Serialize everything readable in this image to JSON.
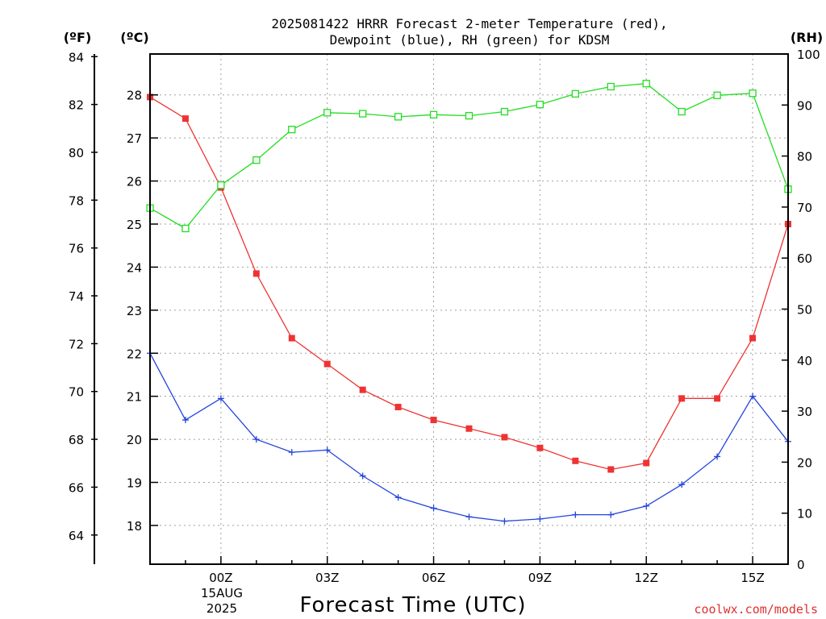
{
  "chart_data": {
    "type": "line",
    "title_lines": [
      "2025081422 HRRR Forecast 2-meter Temperature (red),",
      "Dewpoint (blue), RH (green) for KDSM"
    ],
    "xlabel": "Forecast Time (UTC)",
    "date_label": [
      "15AUG",
      "2025"
    ],
    "credit": "coolwx.com/models",
    "credit_color": "#e03030",
    "x_tick_labels": [
      "00Z",
      "03Z",
      "06Z",
      "09Z",
      "12Z",
      "15Z"
    ],
    "x_tick_hours": [
      0,
      3,
      6,
      9,
      12,
      15
    ],
    "x_hours": [
      -2,
      -1,
      0,
      1,
      2,
      3,
      4,
      5,
      6,
      7,
      8,
      9,
      10,
      11,
      12,
      13,
      14,
      15,
      16
    ],
    "xlim": [
      -2,
      16
    ],
    "axes": {
      "fahrenheit": {
        "label": "(ºF)",
        "ticks": [
          64,
          66,
          68,
          70,
          72,
          74,
          76,
          78,
          80,
          82,
          84
        ]
      },
      "celsius": {
        "label": "(ºC)",
        "ticks": [
          18,
          19,
          20,
          21,
          22,
          23,
          24,
          25,
          26,
          27,
          28
        ],
        "ylim": [
          17.1,
          28.95
        ]
      },
      "rh": {
        "label": "(RH)",
        "ticks": [
          0,
          10,
          20,
          30,
          40,
          50,
          60,
          70,
          80,
          90,
          100
        ],
        "ylim": [
          0,
          100
        ]
      }
    },
    "grid": true,
    "series": [
      {
        "axis": "celsius",
        "color": "#ee3333",
        "marker": "filled-square",
        "values": [
          27.95,
          27.45,
          25.85,
          23.85,
          22.35,
          21.75,
          21.15,
          20.75,
          20.45,
          20.25,
          20.05,
          19.8,
          19.5,
          19.3,
          19.45,
          20.95,
          20.95,
          22.35,
          25.0
        ]
      },
      {
        "axis": "celsius",
        "color": "#2244dd",
        "marker": "plus",
        "values": [
          22.0,
          20.45,
          20.95,
          20.0,
          19.7,
          19.75,
          19.15,
          18.65,
          18.4,
          18.2,
          18.1,
          18.15,
          18.25,
          18.25,
          18.45,
          18.95,
          19.6,
          21.0,
          19.95
        ]
      },
      {
        "axis": "rh",
        "color": "#22dd22",
        "marker": "open-square",
        "values": [
          69.8,
          65.8,
          74.3,
          79.2,
          85.2,
          88.5,
          88.3,
          87.7,
          88.1,
          87.9,
          88.7,
          90.1,
          92.2,
          93.6,
          94.2,
          88.7,
          91.9,
          92.3,
          73.5
        ]
      }
    ]
  }
}
